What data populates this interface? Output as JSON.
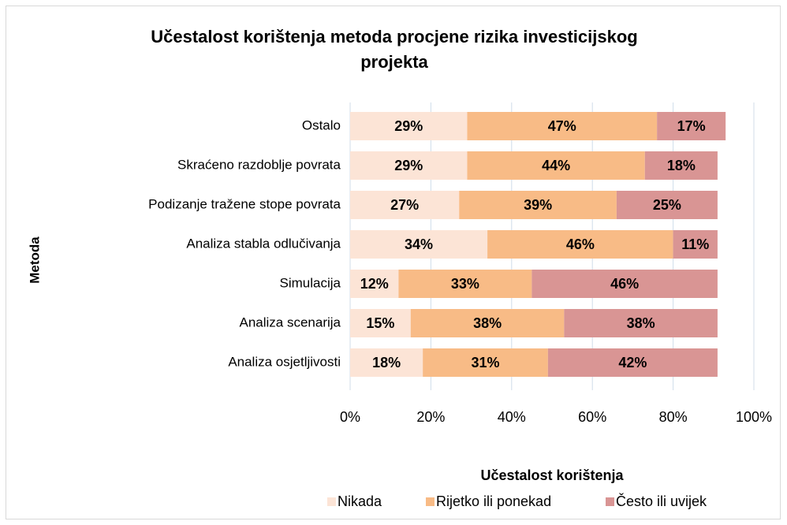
{
  "chart_data": {
    "type": "stacked_barh",
    "title": "Učestalost korištenja metoda procjene rizika investicijskog projekta",
    "xlabel": "Učestalost korištenja",
    "ylabel": "Metoda",
    "categories": [
      "Ostalo",
      "Skraćeno razdoblje povrata",
      "Podizanje tražene stope povrata",
      "Analiza stabla odlučivanja",
      "Simulacija",
      "Analiza scenarija",
      "Analiza osjetljivosti"
    ],
    "series": [
      {
        "name": "Nikada",
        "color": "#fce4d6",
        "values": [
          29,
          29,
          27,
          34,
          12,
          15,
          18
        ],
        "value_labels": [
          "29%",
          "29%",
          "27%",
          "34%",
          "12%",
          "15%",
          "18%"
        ]
      },
      {
        "name": "Rijetko ili ponekad",
        "color": "#f8bb86",
        "values": [
          47,
          44,
          39,
          46,
          33,
          38,
          31
        ],
        "value_labels": [
          "47%",
          "44%",
          "39%",
          "46%",
          "33%",
          "38%",
          "31%"
        ]
      },
      {
        "name": "Često ili uvijek",
        "color": "#d99594",
        "values": [
          17,
          18,
          25,
          11,
          46,
          38,
          42
        ],
        "value_labels": [
          "17%",
          "18%",
          "25%",
          "11%",
          "46%",
          "38%",
          "42%"
        ]
      }
    ],
    "xlim": [
      0,
      100
    ],
    "xticks": [
      {
        "value": 0,
        "label": "0%"
      },
      {
        "value": 20,
        "label": "20%"
      },
      {
        "value": 40,
        "label": "40%"
      },
      {
        "value": 60,
        "label": "60%"
      },
      {
        "value": 80,
        "label": "80%"
      },
      {
        "value": 100,
        "label": "100%"
      }
    ],
    "grid": true,
    "legend": "bottom"
  }
}
